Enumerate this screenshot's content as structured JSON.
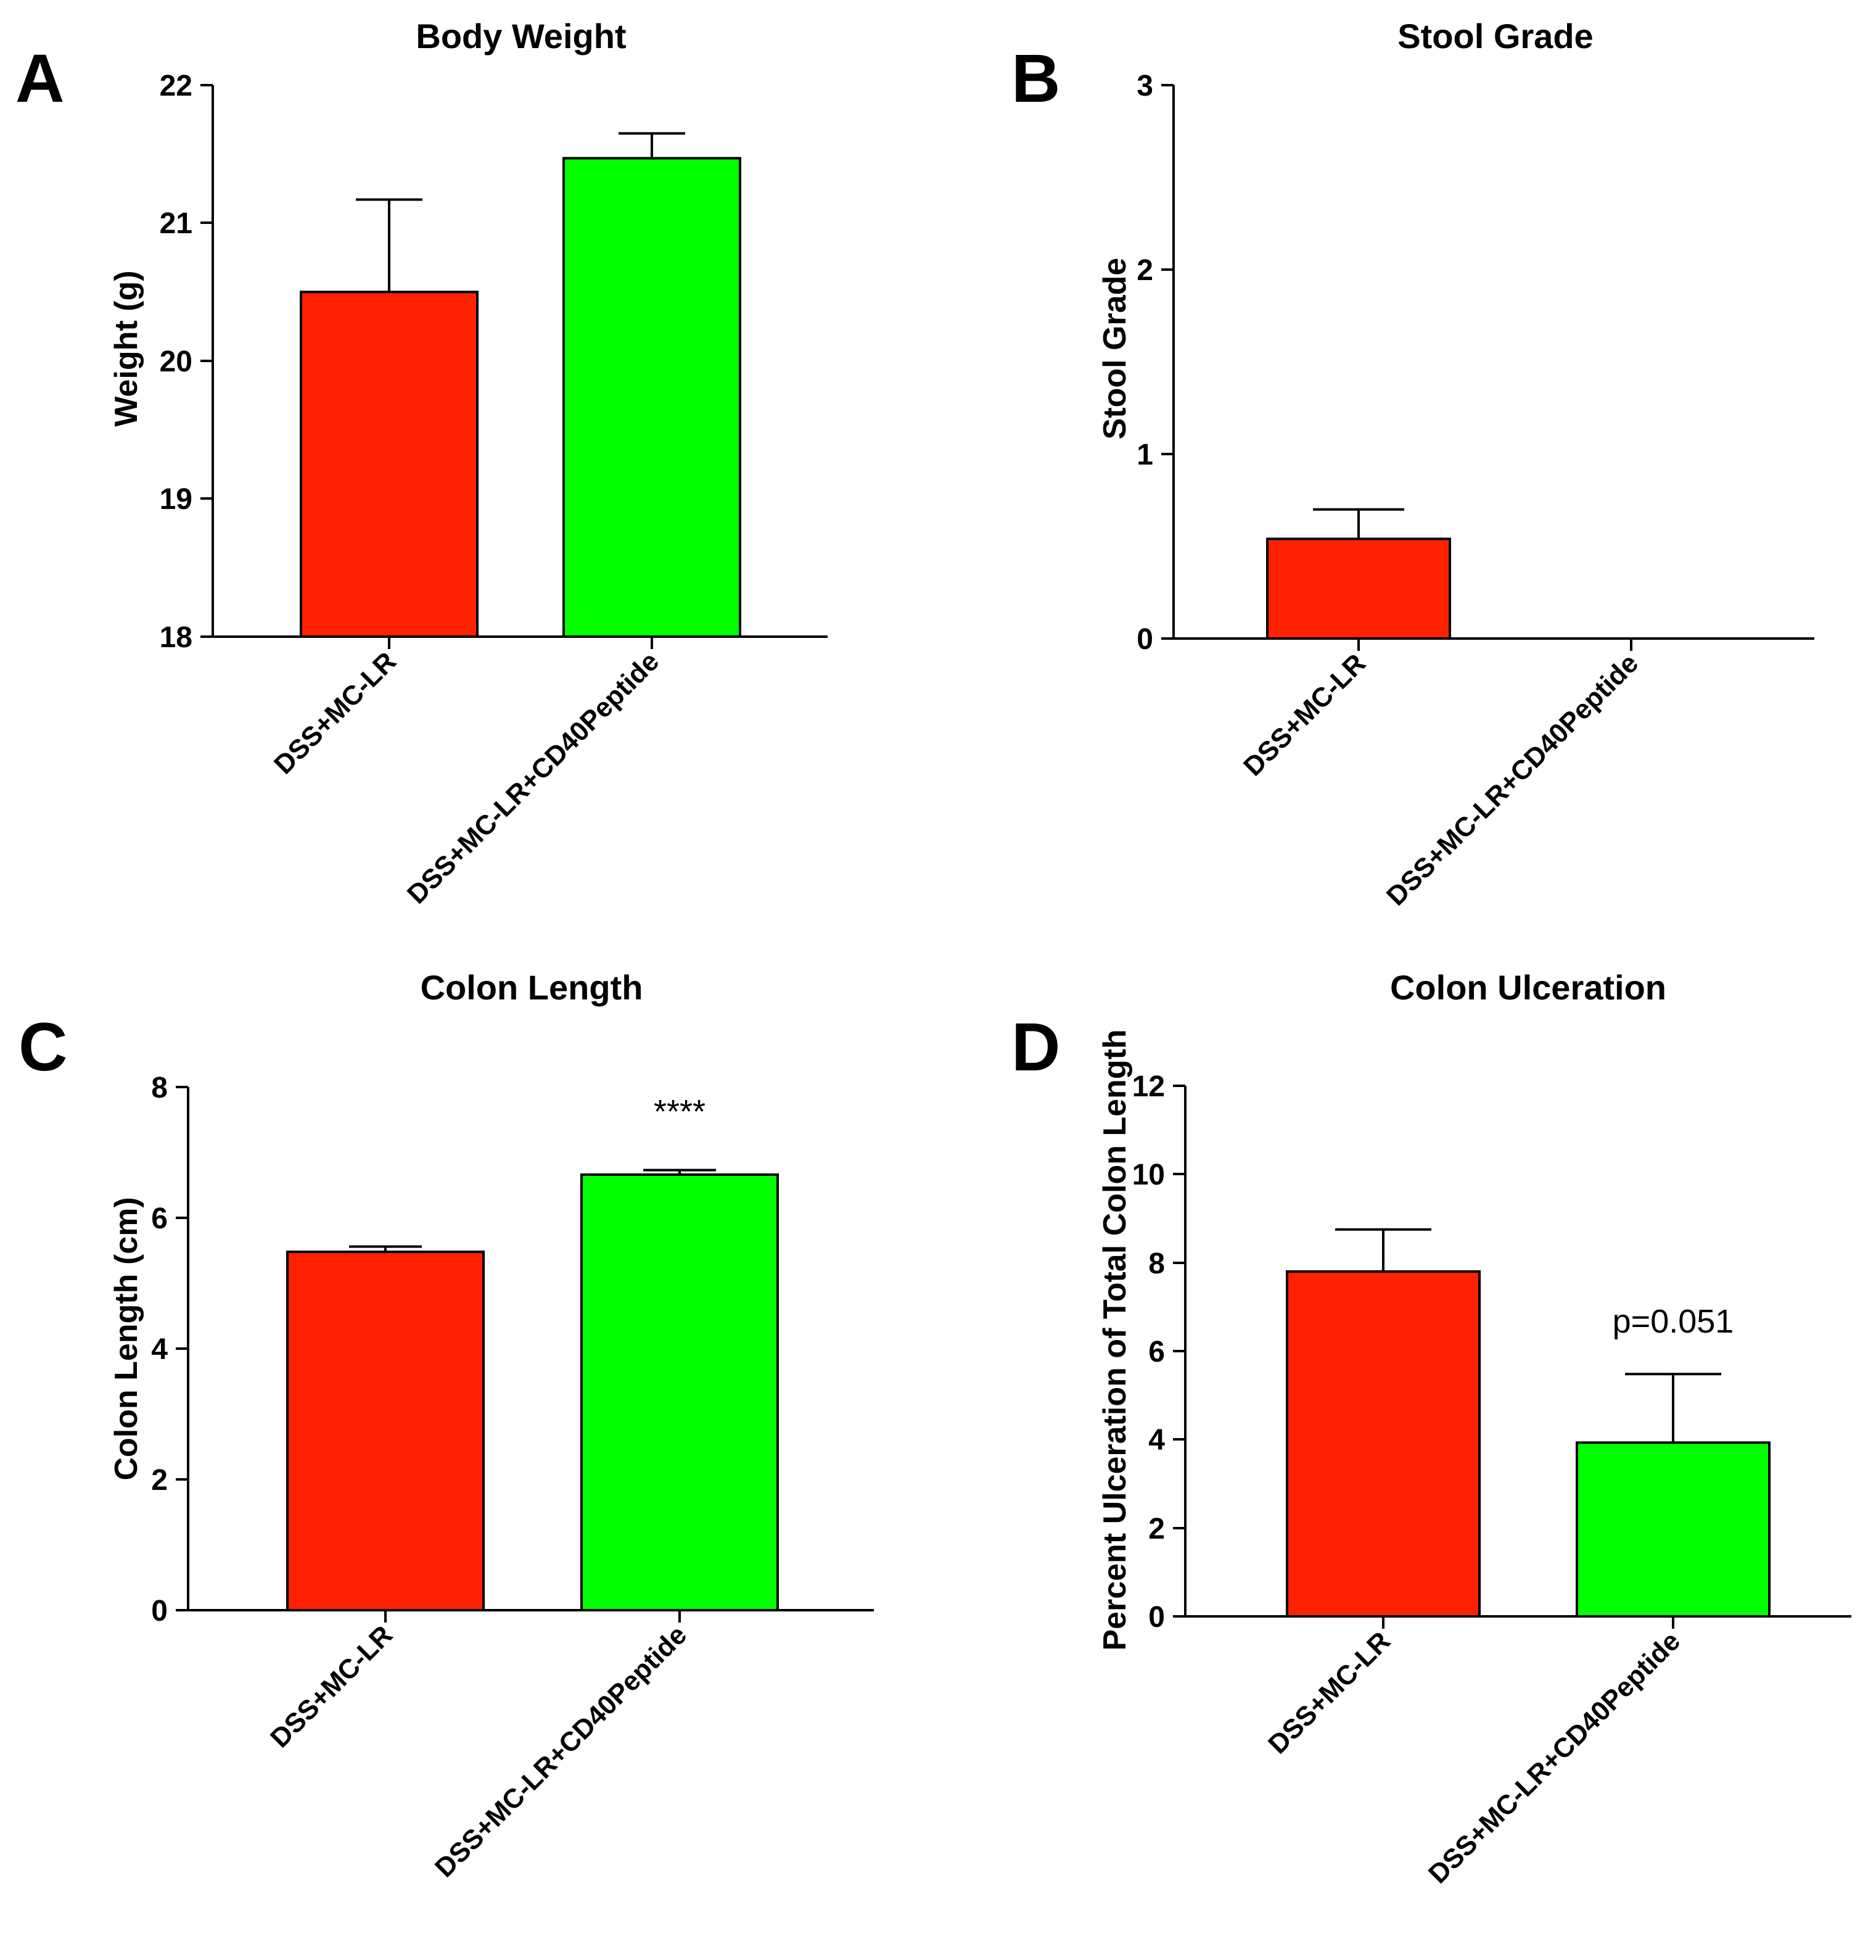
{
  "colors": {
    "red": "#ff2200",
    "green": "#00ff00",
    "axis": "#000000"
  },
  "chart_data": [
    {
      "type": "bar",
      "panel": "A",
      "title": "Body Weight",
      "ylabel": "Weight (g)",
      "ylim": [
        18,
        22
      ],
      "yticks": [
        "18",
        "19",
        "20",
        "21",
        "22"
      ],
      "categories": [
        "DSS+MC-LR",
        "DSS+MC-LR+CD40Peptide"
      ],
      "values": [
        20.5,
        21.47
      ],
      "errors": [
        0.67,
        0.18
      ],
      "colors": [
        "#ff2200",
        "#00ff00"
      ],
      "annotation": ""
    },
    {
      "type": "bar",
      "panel": "B",
      "title": "Stool Grade",
      "ylabel": "Stool Grade",
      "ylim": [
        0,
        3
      ],
      "yticks": [
        "0",
        "1",
        "2",
        "3"
      ],
      "categories": [
        "DSS+MC-LR",
        "DSS+MC-LR+CD40Peptide"
      ],
      "values": [
        0.54,
        0
      ],
      "errors": [
        0.16,
        0
      ],
      "colors": [
        "#ff2200",
        "#00ff00"
      ],
      "annotation": ""
    },
    {
      "type": "bar",
      "panel": "C",
      "title": "Colon Length",
      "ylabel": "Colon Length (cm)",
      "ylim": [
        0,
        8
      ],
      "yticks": [
        "0",
        "2",
        "4",
        "6",
        "8"
      ],
      "categories": [
        "DSS+MC-LR",
        "DSS+MC-LR+CD40Peptide"
      ],
      "values": [
        5.48,
        6.66
      ],
      "errors": [
        0.08,
        0.07
      ],
      "colors": [
        "#ff2200",
        "#00ff00"
      ],
      "annotation": "****"
    },
    {
      "type": "bar",
      "panel": "D",
      "title": "Colon Ulceration",
      "ylabel": "Percent Ulceration of Total Colon Length",
      "ylim": [
        0,
        12
      ],
      "yticks": [
        "0",
        "2",
        "4",
        "6",
        "8",
        "10",
        "12"
      ],
      "categories": [
        "DSS+MC-LR",
        "DSS+MC-LR+CD40Peptide"
      ],
      "values": [
        7.8,
        3.93
      ],
      "errors": [
        0.95,
        1.55
      ],
      "colors": [
        "#ff2200",
        "#00ff00"
      ],
      "annotation": "p=0.051"
    }
  ]
}
